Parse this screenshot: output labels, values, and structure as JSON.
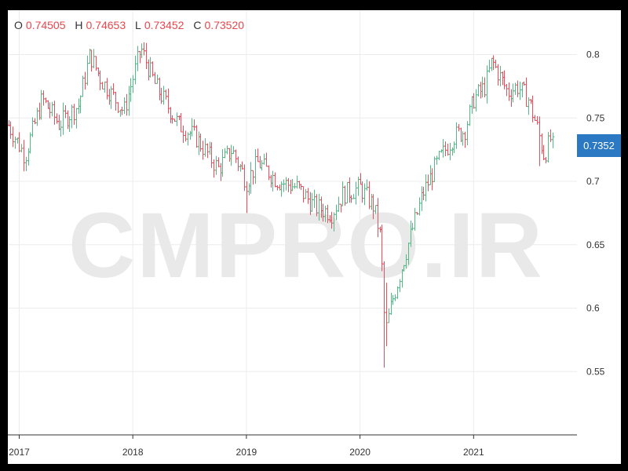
{
  "ohlc": {
    "o_label": "O",
    "o_value": "0.74505",
    "h_label": "H",
    "h_value": "0.74653",
    "l_label": "L",
    "l_value": "0.73452",
    "c_label": "C",
    "c_value": "0.73520"
  },
  "watermark": "CMPRO.IR",
  "last_price_label": "0.7352",
  "colors": {
    "up": "#53b987",
    "down": "#eb4d5c",
    "grid": "#ececec",
    "price_tag": "#2b79c2"
  },
  "chart_data": {
    "type": "ohlc",
    "ylim": [
      0.5,
      0.835
    ],
    "xlim": [
      2016.9,
      2021.91
    ],
    "y_ticks": [
      0.55,
      0.6,
      0.65,
      0.7,
      0.75,
      0.8
    ],
    "y_tick_labels": [
      "0.55",
      "0.6",
      "0.65",
      "0.7",
      "0.75",
      "0.8"
    ],
    "x_ticks": [
      2017,
      2018,
      2019,
      2020,
      2021
    ],
    "x_tick_labels": [
      "2017",
      "2018",
      "2019",
      "2020",
      "2021"
    ],
    "last_price": 0.7352,
    "key_points": [
      [
        2016.9,
        0.745
      ],
      [
        2017.05,
        0.72
      ],
      [
        2017.2,
        0.765
      ],
      [
        2017.35,
        0.745
      ],
      [
        2017.52,
        0.76
      ],
      [
        2017.62,
        0.8
      ],
      [
        2017.72,
        0.78
      ],
      [
        2017.92,
        0.755
      ],
      [
        2018.07,
        0.805
      ],
      [
        2018.2,
        0.775
      ],
      [
        2018.4,
        0.745
      ],
      [
        2018.55,
        0.735
      ],
      [
        2018.75,
        0.71
      ],
      [
        2018.87,
        0.725
      ],
      [
        2019.0,
        0.7
      ],
      [
        2019.1,
        0.715
      ],
      [
        2019.28,
        0.7
      ],
      [
        2019.45,
        0.695
      ],
      [
        2019.6,
        0.68
      ],
      [
        2019.75,
        0.675
      ],
      [
        2019.85,
        0.69
      ],
      [
        2020.0,
        0.695
      ],
      [
        2020.12,
        0.68
      ],
      [
        2020.18,
        0.655
      ],
      [
        2020.22,
        0.58
      ],
      [
        2020.28,
        0.605
      ],
      [
        2020.42,
        0.65
      ],
      [
        2020.55,
        0.69
      ],
      [
        2020.68,
        0.715
      ],
      [
        2020.82,
        0.735
      ],
      [
        2020.92,
        0.74
      ],
      [
        2021.0,
        0.765
      ],
      [
        2021.1,
        0.775
      ],
      [
        2021.16,
        0.795
      ],
      [
        2021.3,
        0.77
      ],
      [
        2021.38,
        0.775
      ],
      [
        2021.48,
        0.765
      ],
      [
        2021.55,
        0.745
      ],
      [
        2021.62,
        0.72
      ],
      [
        2021.7,
        0.74
      ]
    ]
  }
}
